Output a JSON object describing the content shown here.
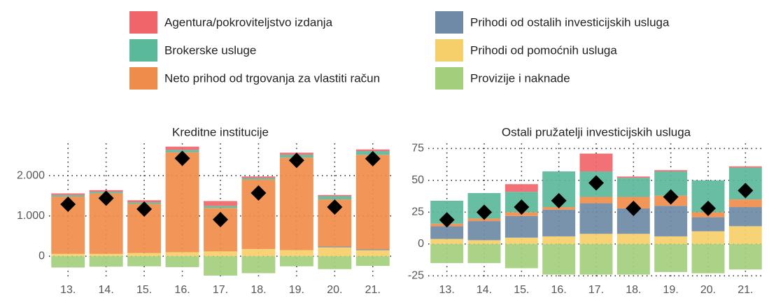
{
  "chart_data": [
    {
      "type": "stacked-bar",
      "title": "Kreditne institucije",
      "categories": [
        "13.",
        "14.",
        "15.",
        "16.",
        "17.",
        "18.",
        "19.",
        "20.",
        "21."
      ],
      "ylim": [
        -550,
        2800
      ],
      "yticks": [
        0,
        {
          "value": 1000,
          "label": "1.000"
        },
        {
          "value": 2000,
          "label": "2.000"
        }
      ],
      "grid": true,
      "series": [
        {
          "name": "Agentura/pokroviteljstvo izdanja",
          "color": "#f0656a",
          "values": [
            40,
            40,
            50,
            80,
            120,
            40,
            50,
            30,
            40
          ]
        },
        {
          "name": "Brokerske usluge",
          "color": "#5ab99a",
          "values": [
            40,
            40,
            40,
            60,
            50,
            40,
            70,
            80,
            90
          ]
        },
        {
          "name": "Neto prihod od trgovanja za vlastiti račun",
          "color": "#f08c4a",
          "values": [
            1420,
            1500,
            1220,
            2480,
            1080,
            1720,
            2300,
            1170,
            2350
          ]
        },
        {
          "name": "Prihodi od ostalih investicijskih usluga",
          "color": "#6e8aa6",
          "values": [
            0,
            0,
            0,
            0,
            0,
            0,
            0,
            20,
            20
          ]
        },
        {
          "name": "Prihodi od pomoćnih usluga",
          "color": "#f7cf6a",
          "values": [
            60,
            60,
            80,
            100,
            120,
            180,
            150,
            220,
            150
          ]
        },
        {
          "name": "Provizije i naknade",
          "color": "#a3cf7d",
          "values": [
            -280,
            -260,
            -250,
            -270,
            -480,
            -420,
            -250,
            -320,
            -240
          ]
        }
      ],
      "markers": {
        "color": "#000000",
        "values": [
          1290,
          1440,
          1170,
          2430,
          910,
          1570,
          2380,
          1220,
          2420
        ]
      }
    },
    {
      "type": "stacked-bar",
      "title": "Ostali pružatelji investicijskih usluga",
      "categories": [
        "13.",
        "14.",
        "15.",
        "16.",
        "17.",
        "18.",
        "19.",
        "20.",
        "21."
      ],
      "ylim": [
        -27,
        79
      ],
      "yticks": [
        -25,
        0,
        25,
        50,
        75
      ],
      "grid": true,
      "series": [
        {
          "color": "#f0656a",
          "values": [
            0,
            0,
            6,
            0,
            14,
            1,
            1,
            0,
            1
          ]
        },
        {
          "color": "#5ab99a",
          "values": [
            18,
            20,
            16,
            28,
            20,
            15,
            19,
            25,
            25
          ]
        },
        {
          "color": "#f08c4a",
          "values": [
            2,
            2,
            3,
            2,
            5,
            9,
            8,
            4,
            6
          ]
        },
        {
          "color": "#6e8aa6",
          "values": [
            10,
            15,
            17,
            21,
            24,
            20,
            24,
            11,
            15
          ]
        },
        {
          "color": "#f7cf6a",
          "values": [
            4,
            3,
            5,
            6,
            8,
            8,
            6,
            10,
            14
          ]
        },
        {
          "color": "#a3cf7d",
          "values": [
            -15,
            -15,
            -19,
            -24,
            -24,
            -24,
            -22,
            -23,
            -20
          ]
        }
      ],
      "markers": {
        "color": "#000000",
        "values": [
          19,
          25,
          29,
          34,
          48,
          28,
          37,
          28,
          42
        ]
      }
    }
  ]
}
